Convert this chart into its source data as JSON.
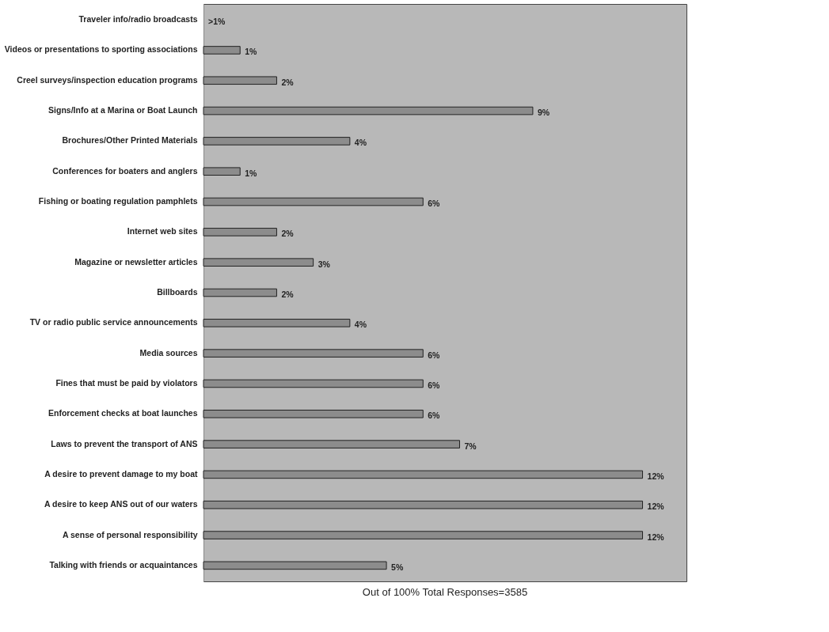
{
  "chart_data": {
    "type": "bar",
    "orientation": "horizontal",
    "categories": [
      "Traveler info/radio broadcasts",
      "Videos or presentations to sporting associations",
      "Creel surveys/inspection education programs",
      "Signs/Info at a Marina or Boat Launch",
      "Brochures/Other Printed Materials",
      "Conferences  for boaters and anglers",
      "Fishing or boating regulation pamphlets",
      "Internet web sites",
      "Magazine or newsletter articles",
      "Billboards",
      "TV or radio public service announcements",
      "Media sources",
      "Fines that must be paid by violators",
      "Enforcement checks at boat launches",
      "Laws to prevent the transport of ANS",
      "A desire to prevent damage to my boat",
      "A desire to keep ANS out of our waters",
      "A sense of personal responsibility",
      "Talking with friends or acquaintances"
    ],
    "values": [
      null,
      1,
      2,
      9,
      4,
      1,
      6,
      2,
      3,
      2,
      4,
      6,
      6,
      6,
      7,
      12,
      12,
      12,
      5
    ],
    "value_labels": [
      ">1%",
      "1%",
      "2%",
      "9%",
      "4%",
      "1%",
      "6%",
      "2%",
      "3%",
      "2%",
      "4%",
      "6%",
      "6%",
      "6%",
      "7%",
      "12%",
      "12%",
      "12%",
      "5%"
    ],
    "color": "#8c8c8c",
    "annotations": [
      "Out of 100% Total Responses=3585"
    ]
  }
}
